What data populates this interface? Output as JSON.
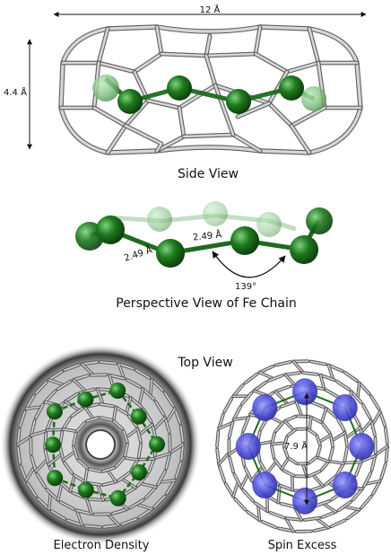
{
  "dimensions": {
    "length": "12 Å",
    "height": "4.4 Å",
    "fe_fe_distance_left": "2.49 Å",
    "fe_fe_distance_right": "2.49 Å",
    "bond_angle": "139°",
    "ring_diameter": "7.9 Å"
  },
  "captions": {
    "side_view": "Side View",
    "perspective_view": "Perspective View of Fe Chain",
    "top_view": "Top View",
    "electron_density": "Electron Density",
    "spin_excess": "Spin Excess"
  },
  "colors": {
    "fe_atom": "#1f7a1f",
    "fe_bond": "#1e6b1e",
    "cage": "#bfbfbf",
    "cage_edge": "#6a6a6a",
    "spin_lobe": "#4b4bd8",
    "density_shadow": "#222222"
  }
}
